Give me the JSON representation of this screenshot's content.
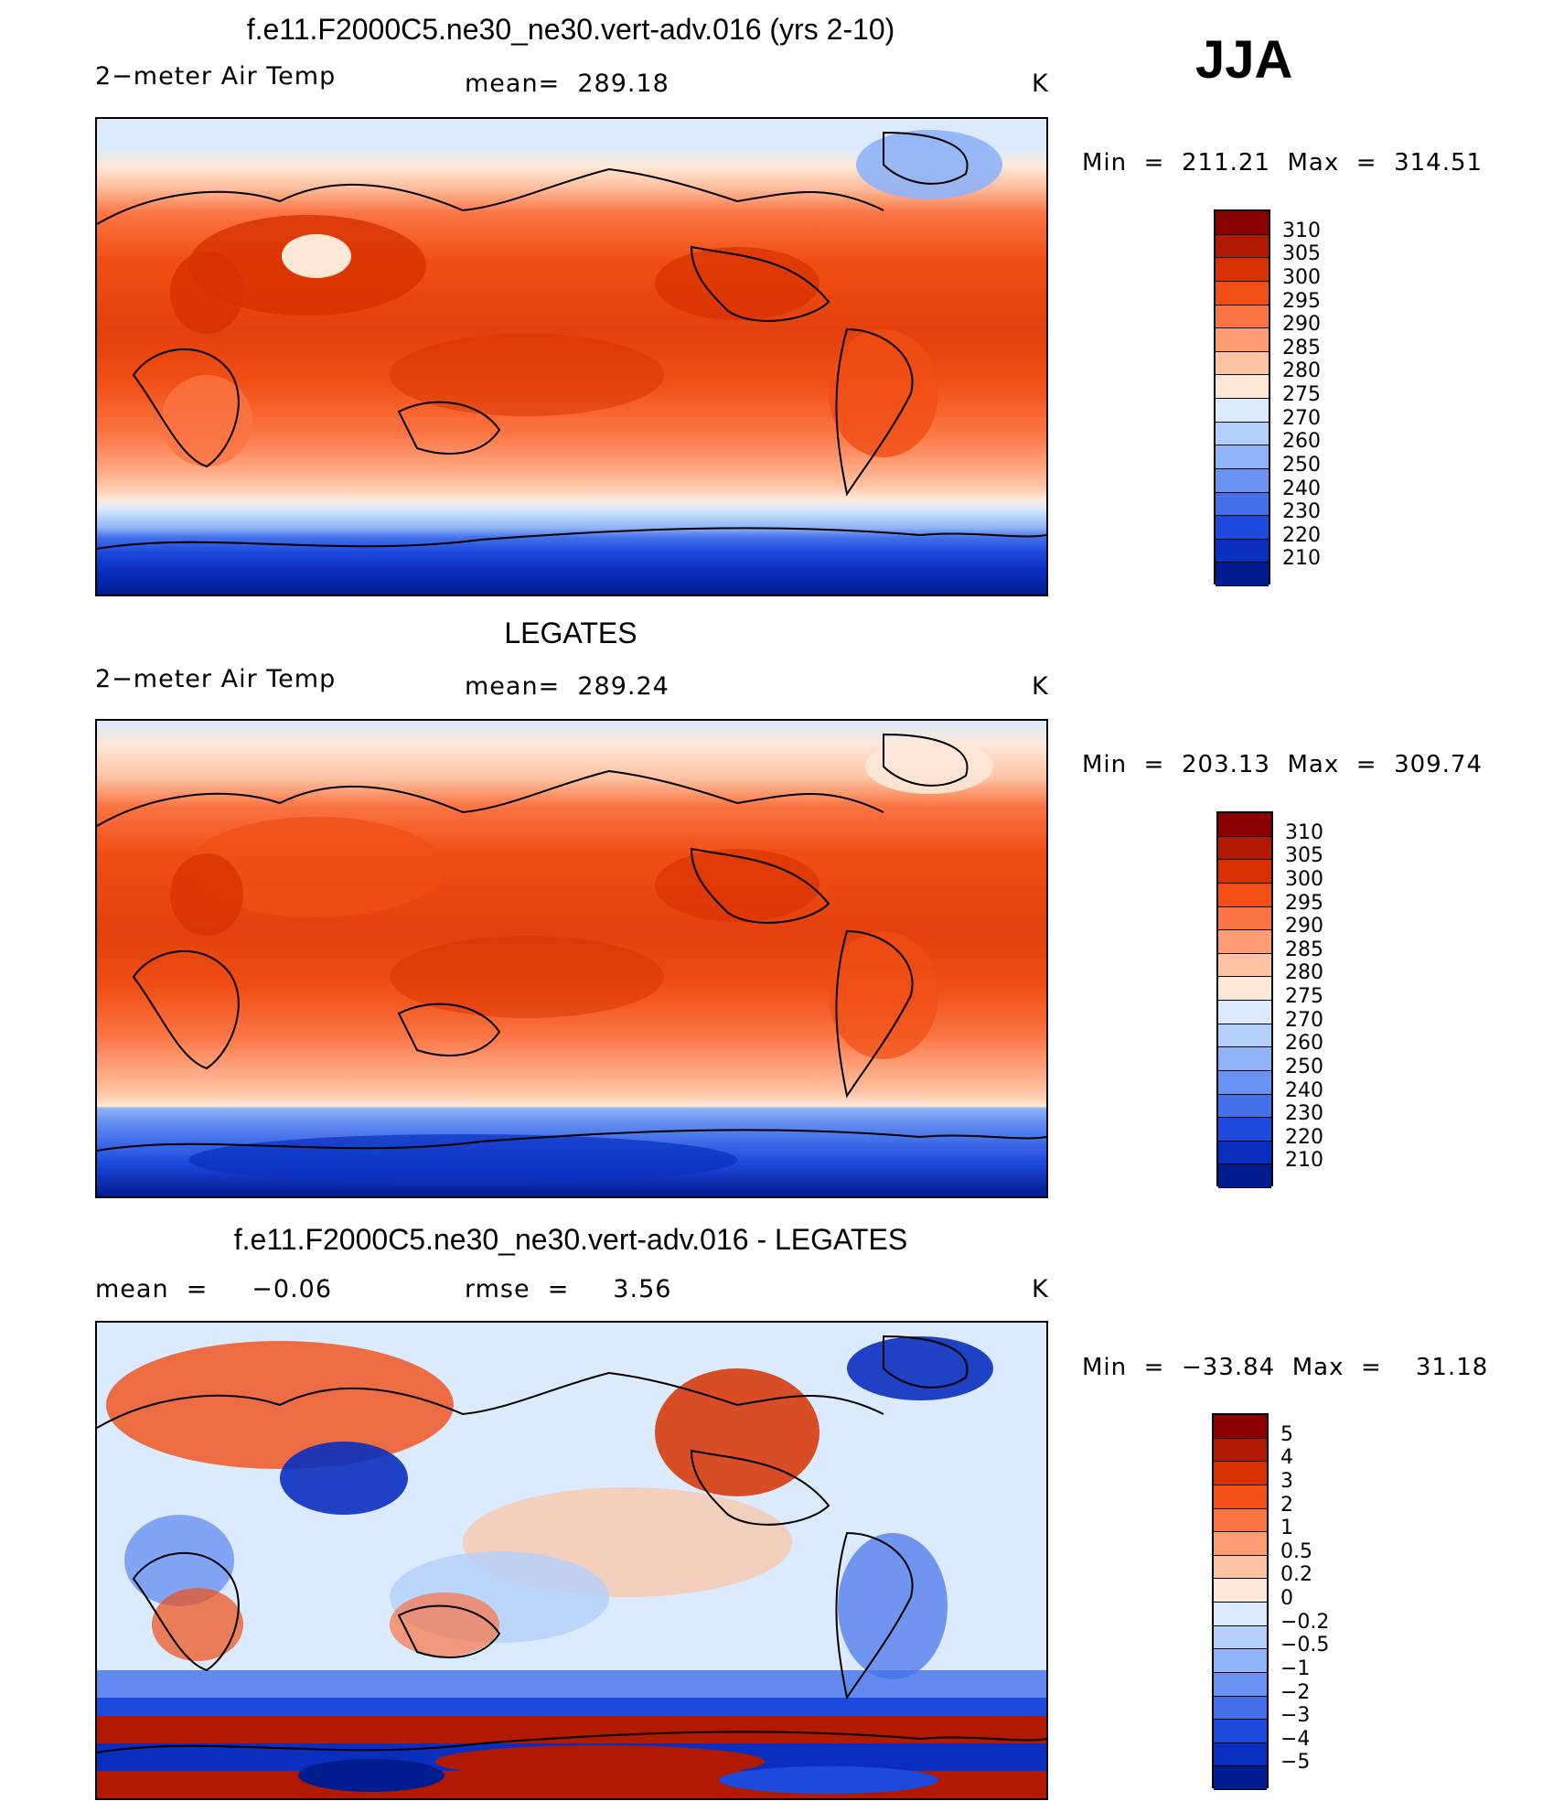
{
  "season": "JJA",
  "panels": [
    {
      "title": "f.e11.F2000C5.ne30_ne30.vert-adv.016 (yrs 2-10)",
      "left_label": "2−meter Air Temp",
      "center_label": "mean=  289.18",
      "units": "K",
      "minmax": "Min  =  211.21  Max  =  314.51"
    },
    {
      "title": "LEGATES",
      "left_label": "2−meter Air Temp",
      "center_label": "mean=  289.24",
      "units": "K",
      "minmax": "Min  =  203.13  Max  =  309.74"
    },
    {
      "title": "f.e11.F2000C5.ne30_ne30.vert-adv.016 - LEGATES",
      "left_label": "mean  =     −0.06",
      "center_label": "rmse  =     3.56",
      "units": "K",
      "minmax": "Min  =  −33.84  Max  =    31.18"
    }
  ],
  "colorbars": {
    "abs_labels": [
      "310",
      "305",
      "300",
      "295",
      "290",
      "285",
      "280",
      "275",
      "270",
      "260",
      "250",
      "240",
      "230",
      "220",
      "210"
    ],
    "diff_labels": [
      "5",
      "4",
      "3",
      "2",
      "1",
      "0.5",
      "0.2",
      "0",
      "−0.2",
      "−0.5",
      "−1",
      "−2",
      "−3",
      "−4",
      "−5"
    ],
    "colors": [
      "#8b0000",
      "#b11a00",
      "#d73100",
      "#f04e14",
      "#fb7443",
      "#fd9c73",
      "#fdc3a3",
      "#fde8d8",
      "#dbeafc",
      "#b4d0fa",
      "#8fb3f7",
      "#6a92f2",
      "#4470ea",
      "#1d49dd",
      "#0a2fbf",
      "#001c8f"
    ]
  }
}
